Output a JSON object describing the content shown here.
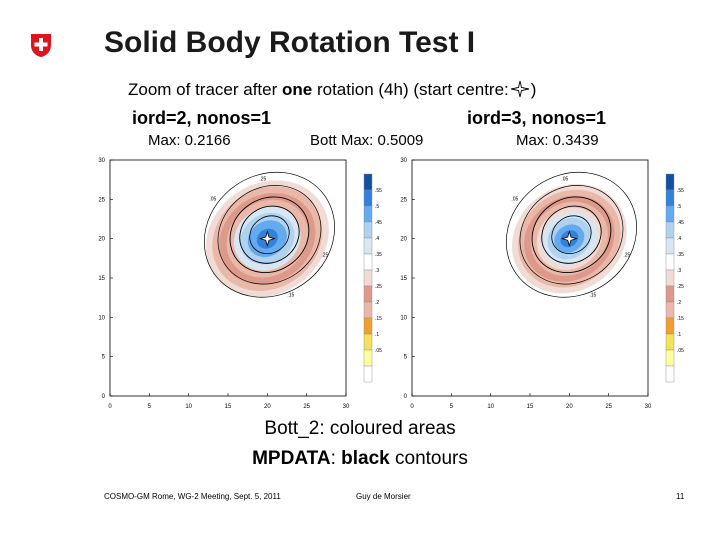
{
  "slide": {
    "title": "Solid Body Rotation Test I",
    "subtitle_pre": "Zoom of tracer after ",
    "subtitle_bold": "one",
    "subtitle_post": " rotation (4h) (start centre:",
    "subtitle_end": ")",
    "left_config": "iord=2, nonos=1",
    "right_config": "iord=3, nonos=1",
    "max_left": "Max: 0.2166",
    "max_mid": "Bott Max: 0.5009",
    "max_right": "Max: 0.3439",
    "caption_line1": "Bott_2: coloured areas",
    "caption_bold1": "MPDATA",
    "caption_mid": ": ",
    "caption_bold2": "black",
    "caption_end": " contours",
    "footer_left": "COSMO-GM Rome, WG-2 Meeting, Sept. 5, 2011",
    "footer_center": "Guy de Morsier",
    "footer_page": "11"
  },
  "colors": {
    "swiss_red": "#e1141c",
    "legend": [
      "#ffffff",
      "#ffffa0",
      "#f5e15a",
      "#f0a030",
      "#e9b8a8",
      "#dd9a8c",
      "#f0dcd4",
      "#ffffff",
      "#d8e6f4",
      "#aed2f0",
      "#64aaf0",
      "#3282dc",
      "#1450a0"
    ]
  },
  "chart_data": [
    {
      "type": "heatmap",
      "title": "iord=2, nonos=1",
      "xticks": [
        "0",
        "5",
        "10",
        "15",
        "20",
        "25",
        "30"
      ],
      "yticks": [
        "0",
        "5",
        "10",
        "15",
        "20",
        "25",
        "30"
      ],
      "xlim": [
        0,
        30
      ],
      "ylim": [
        0,
        30
      ],
      "max": 0.2166,
      "centre": [
        20,
        20
      ],
      "legend_levels": [
        ".55",
        ".5",
        ".45",
        ".4",
        ".35",
        ".3",
        ".25",
        ".2",
        ".15",
        ".1",
        ".05"
      ],
      "contour_labels": [
        ".05",
        ".25",
        ".15",
        ".25"
      ]
    },
    {
      "type": "heatmap",
      "title": "iord=3, nonos=1",
      "xticks": [
        "0",
        "5",
        "10",
        "15",
        "20",
        "25",
        "30"
      ],
      "yticks": [
        "0",
        "5",
        "10",
        "15",
        "20",
        "25",
        "30"
      ],
      "xlim": [
        0,
        30
      ],
      "ylim": [
        0,
        30
      ],
      "max": 0.3439,
      "centre": [
        20,
        20
      ],
      "legend_levels": [
        ".55",
        ".5",
        ".45",
        ".4",
        ".35",
        ".3",
        ".25",
        ".2",
        ".15",
        ".1",
        ".05"
      ],
      "contour_labels": [
        ".05",
        ".25",
        ".15",
        ".05"
      ]
    }
  ]
}
